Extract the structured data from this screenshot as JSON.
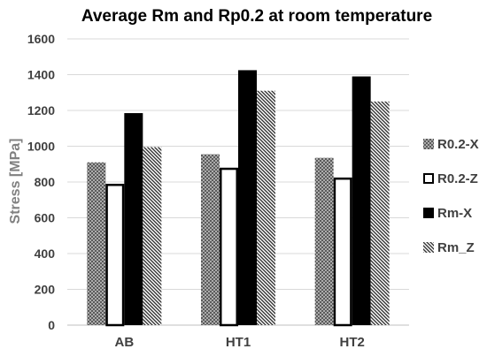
{
  "chart_data": {
    "type": "bar",
    "title": "Average Rm and Rp0.2 at room temperature",
    "ylabel": "Stress [MPa]",
    "xlabel": "",
    "categories": [
      "AB",
      "HT1",
      "HT2"
    ],
    "ylim": [
      0,
      1600
    ],
    "yticks": [
      0,
      200,
      400,
      600,
      800,
      1000,
      1200,
      1400,
      1600
    ],
    "grid": true,
    "legend_position": "right",
    "series": [
      {
        "name": "R0.2-X",
        "values": [
          910,
          955,
          935
        ],
        "pattern": "crosshatch",
        "color": "#7f7f7f"
      },
      {
        "name": "R0.2-Z",
        "values": [
          790,
          880,
          825
        ],
        "pattern": "outline",
        "color": "#000000"
      },
      {
        "name": "Rm-X",
        "values": [
          1185,
          1425,
          1390
        ],
        "pattern": "solid",
        "color": "#000000"
      },
      {
        "name": "Rm_Z",
        "values": [
          995,
          1310,
          1250
        ],
        "pattern": "diagonal",
        "color": "#404040"
      }
    ]
  }
}
